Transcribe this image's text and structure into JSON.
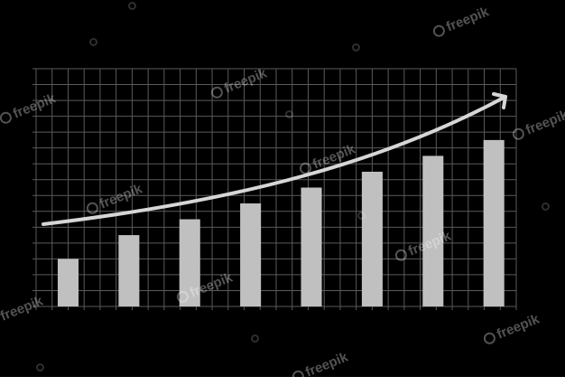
{
  "chart_data": {
    "type": "bar",
    "title": "",
    "xlabel": "",
    "ylabel": "",
    "categories": [
      "",
      "",
      "",
      "",
      "",
      "",
      "",
      ""
    ],
    "values": [
      3,
      4.5,
      5.5,
      6.5,
      7.5,
      8.5,
      9.5,
      10.5
    ],
    "ylim": [
      0,
      15
    ],
    "grid": true,
    "legend": "none",
    "trend_arrow": true
  },
  "colors": {
    "background": "#000000",
    "grid": "#5a5a5a",
    "bar": "#c0c0c0",
    "arrow": "#d6d6d6",
    "watermark": "#ffffff"
  },
  "watermark": {
    "text": "freepik",
    "icon": "freepik-logo-icon"
  }
}
